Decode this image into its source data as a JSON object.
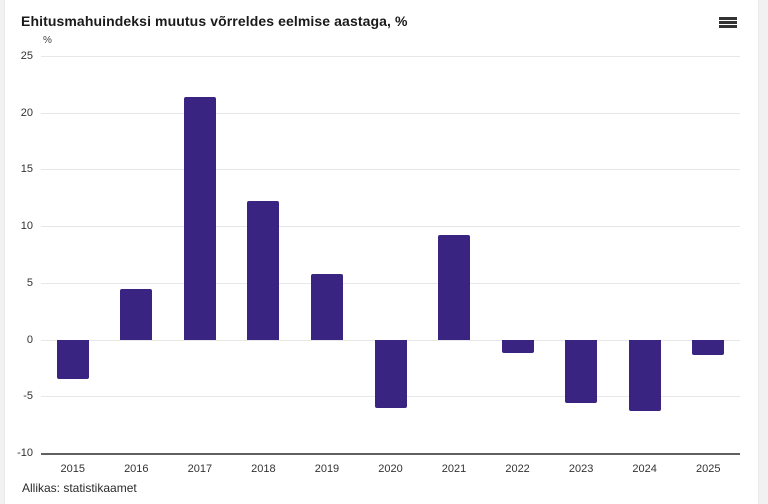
{
  "page": {
    "background_color": "#f1f1f1",
    "card_color": "#ffffff"
  },
  "header": {
    "title": "Ehitusmahuindeksi muutus võrreldes eelmise aastaga, %",
    "menu_icon": "hamburger-menu-icon"
  },
  "footer": {
    "source": "Allikas: statistikaamet"
  },
  "chart_data": {
    "type": "bar",
    "title": "Ehitusmahuindeksi muutus võrreldes eelmise aastaga, %",
    "unit_label": "%",
    "categories": [
      "2015",
      "2016",
      "2017",
      "2018",
      "2019",
      "2020",
      "2021",
      "2022",
      "2023",
      "2024",
      "2025"
    ],
    "values": [
      -3.5,
      4.5,
      21.4,
      12.2,
      5.8,
      -6.0,
      9.2,
      -1.2,
      -5.6,
      -6.3,
      -1.4
    ],
    "ylim": [
      -10,
      25
    ],
    "yticks": [
      25,
      20,
      15,
      10,
      5,
      0,
      -5,
      -10
    ],
    "grid": true,
    "legend_position": "none",
    "bar_color": "#3a2482",
    "grid_color": "#e7e7e7",
    "axis_line_color": "#606060",
    "label_color": "#333333",
    "xlabel": "",
    "ylabel": "%",
    "source": "Allikas: statistikaamet"
  }
}
